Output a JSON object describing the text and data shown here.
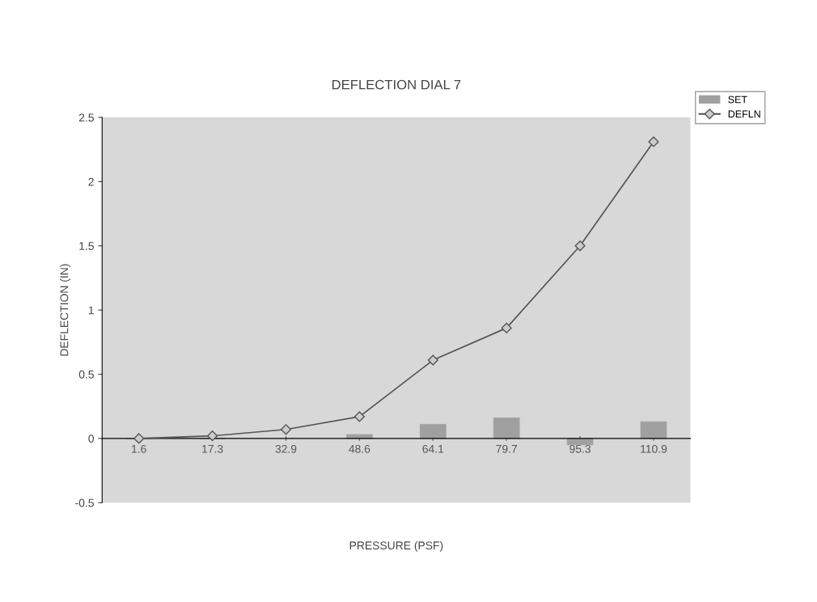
{
  "chart_data": {
    "type": "bar",
    "title": "DEFLECTION DIAL 7",
    "xlabel": "PRESSURE (PSF)",
    "ylabel": "DEFLECTION (IN)",
    "categories": [
      "1.6",
      "17.3",
      "32.9",
      "48.6",
      "64.1",
      "79.7",
      "95.3",
      "110.9"
    ],
    "series": [
      {
        "name": "SET",
        "color": "#a0a0a0",
        "values": [
          0,
          0,
          null,
          0.03,
          0.11,
          0.16,
          -0.05,
          0.13
        ]
      },
      {
        "name": "DEFLN",
        "type": "line",
        "color": "#555555",
        "marker": "diamond",
        "values": [
          0,
          0.02,
          0.07,
          0.17,
          0.61,
          0.86,
          1.5,
          2.31
        ]
      }
    ],
    "ylim": [
      -0.5,
      2.5
    ],
    "yticks": [
      -0.5,
      0,
      0.5,
      1,
      1.5,
      2,
      2.5
    ],
    "grid": false,
    "legend": "top right"
  }
}
